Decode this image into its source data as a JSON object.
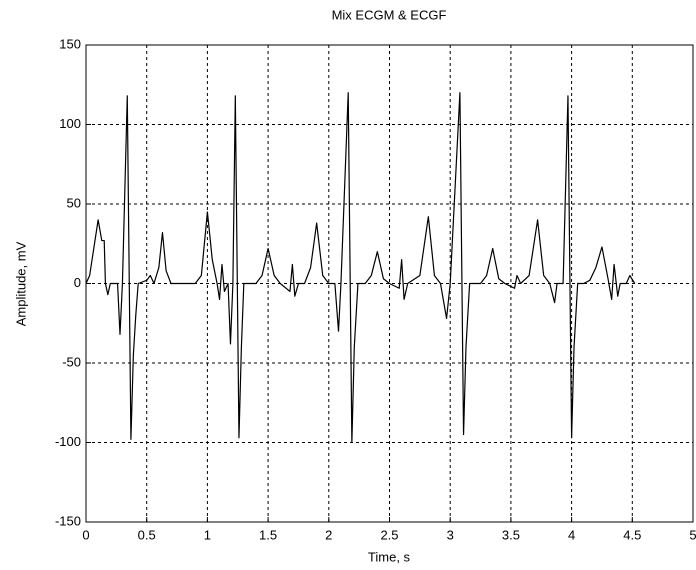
{
  "chart_data": {
    "type": "line",
    "title": "Mix ECGM & ECGF",
    "xlabel": "Time, s",
    "ylabel": "Amplitude, mV",
    "color": "#000000",
    "grid": true,
    "xlim": [
      0,
      5
    ],
    "xticks": [
      0,
      0.5,
      1,
      1.5,
      2,
      2.5,
      3,
      3.5,
      4,
      4.5,
      5
    ],
    "ylim": [
      -150,
      150
    ],
    "yticks": [
      -150,
      -100,
      -50,
      0,
      50,
      100,
      150
    ],
    "x": [
      0,
      0.03,
      0.1,
      0.13,
      0.15,
      0.16,
      0.18,
      0.2,
      0.26,
      0.28,
      0.3,
      0.34,
      0.37,
      0.39,
      0.41,
      0.43,
      0.5,
      0.53,
      0.56,
      0.6,
      0.63,
      0.66,
      0.7,
      0.8,
      0.9,
      0.95,
      1.0,
      1.04,
      1.08,
      1.1,
      1.12,
      1.14,
      1.17,
      1.19,
      1.21,
      1.23,
      1.26,
      1.28,
      1.3,
      1.4,
      1.45,
      1.5,
      1.55,
      1.6,
      1.68,
      1.7,
      1.72,
      1.75,
      1.8,
      1.85,
      1.9,
      1.95,
      2.0,
      2.05,
      2.08,
      2.1,
      2.16,
      2.19,
      2.21,
      2.24,
      2.3,
      2.35,
      2.4,
      2.45,
      2.5,
      2.58,
      2.6,
      2.62,
      2.65,
      2.75,
      2.82,
      2.87,
      2.92,
      2.97,
      3.0,
      3.08,
      3.11,
      3.13,
      3.16,
      3.25,
      3.3,
      3.35,
      3.4,
      3.45,
      3.53,
      3.55,
      3.58,
      3.65,
      3.72,
      3.77,
      3.82,
      3.86,
      3.88,
      3.93,
      3.97,
      4.0,
      4.02,
      4.05,
      4.1,
      4.15,
      4.2,
      4.25,
      4.3,
      4.33,
      4.35,
      4.38,
      4.4,
      4.45,
      4.48,
      4.52
    ],
    "values": [
      0,
      5,
      40,
      27,
      27,
      0,
      -7,
      0,
      0,
      -32,
      0,
      118,
      -98,
      -45,
      -20,
      0,
      2,
      5,
      0,
      10,
      32,
      8,
      0,
      0,
      0,
      5,
      45,
      15,
      0,
      -10,
      12,
      -5,
      0,
      -38,
      0,
      118,
      -97,
      -40,
      0,
      0,
      5,
      22,
      5,
      0,
      -5,
      12,
      -8,
      0,
      0,
      10,
      38,
      5,
      0,
      0,
      -30,
      0,
      120,
      -100,
      -40,
      0,
      0,
      5,
      20,
      3,
      0,
      -3,
      15,
      -10,
      0,
      5,
      42,
      5,
      0,
      -22,
      0,
      120,
      -95,
      -40,
      0,
      0,
      5,
      22,
      3,
      0,
      -3,
      5,
      0,
      5,
      40,
      5,
      0,
      -12,
      0,
      0,
      118,
      -97,
      -40,
      0,
      0,
      2,
      10,
      23,
      3,
      -10,
      12,
      -8,
      0,
      0,
      5,
      0
    ]
  }
}
